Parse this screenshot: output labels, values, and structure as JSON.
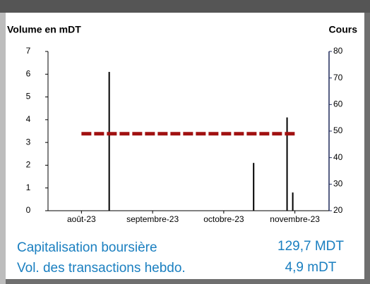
{
  "chart_data": {
    "type": "bar_line",
    "ylabel": "Volume en mDT",
    "y2label": "Cours",
    "xlim": [
      7.53,
      11.48
    ],
    "xticks": [
      {
        "value": 8,
        "label": "août-23"
      },
      {
        "value": 9,
        "label": "septembre-23"
      },
      {
        "value": 10,
        "label": "octobre-23"
      },
      {
        "value": 11,
        "label": "novembre-23"
      }
    ],
    "ylim": [
      0,
      7
    ],
    "yticks": [
      0,
      1,
      2,
      3,
      4,
      5,
      6,
      7
    ],
    "y2lim": [
      20,
      80
    ],
    "y2ticks": [
      20,
      30,
      40,
      50,
      60,
      70,
      80
    ],
    "series": [
      {
        "type": "bar",
        "color": "#000000",
        "x": [
          8.39,
          10.42,
          10.89,
          10.97
        ],
        "values": [
          6.1,
          2.1,
          4.1,
          0.8
        ]
      },
      {
        "type": "line",
        "axis": "y2",
        "color": "#a01010",
        "dashed": true,
        "x": [
          8.0,
          11.0
        ],
        "values": [
          49,
          49
        ]
      }
    ]
  },
  "stats": [
    {
      "label": "Capitalisation boursière",
      "value": "129,7 MDT"
    },
    {
      "label": "Vol. des transactions hebdo.",
      "value": "4,9 mDT"
    }
  ]
}
